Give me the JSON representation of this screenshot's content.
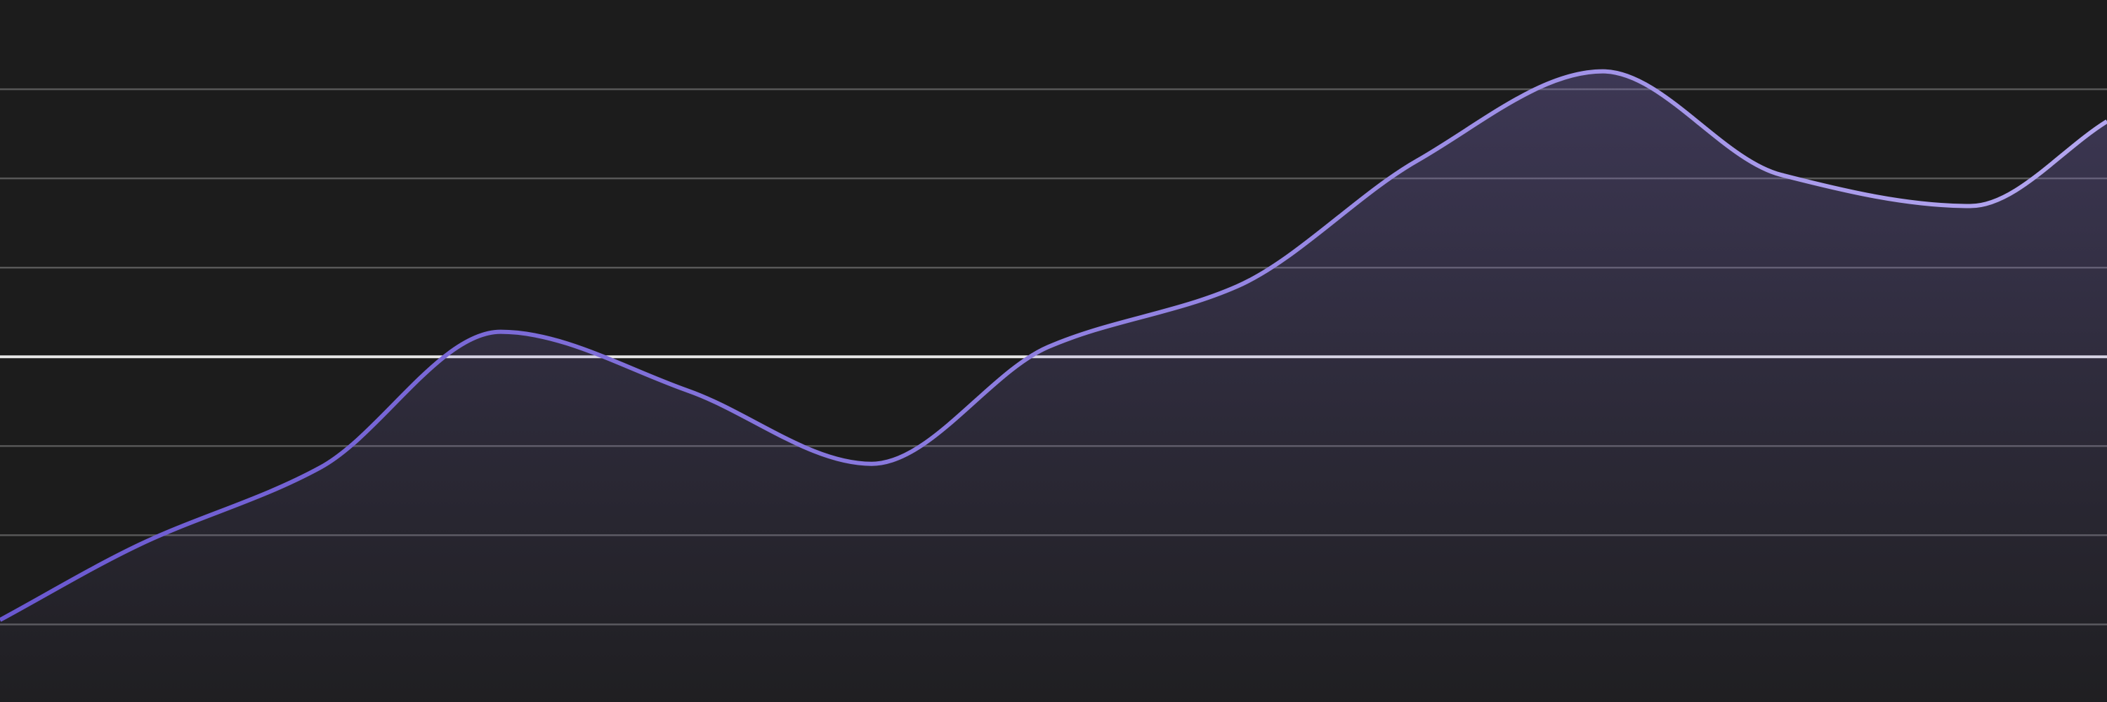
{
  "chart_data": {
    "type": "area",
    "x": [
      0,
      0.77,
      1.78,
      2.78,
      3.82,
      4.84,
      5.82,
      6.87,
      7.87,
      8.9,
      9.89,
      10.94,
      11.7
    ],
    "values": [
      0.05,
      0.89,
      1.76,
      3.28,
      2.62,
      1.8,
      3.11,
      3.79,
      5.2,
      6.2,
      5.04,
      4.69,
      5.64
    ],
    "color": "#7b68e0",
    "xlim": [
      0,
      11.7
    ],
    "ylim": [
      -0.87,
      7
    ],
    "yticks": [
      0,
      1,
      2,
      3,
      4,
      5,
      6
    ],
    "grid": true,
    "baseline": 3
  }
}
